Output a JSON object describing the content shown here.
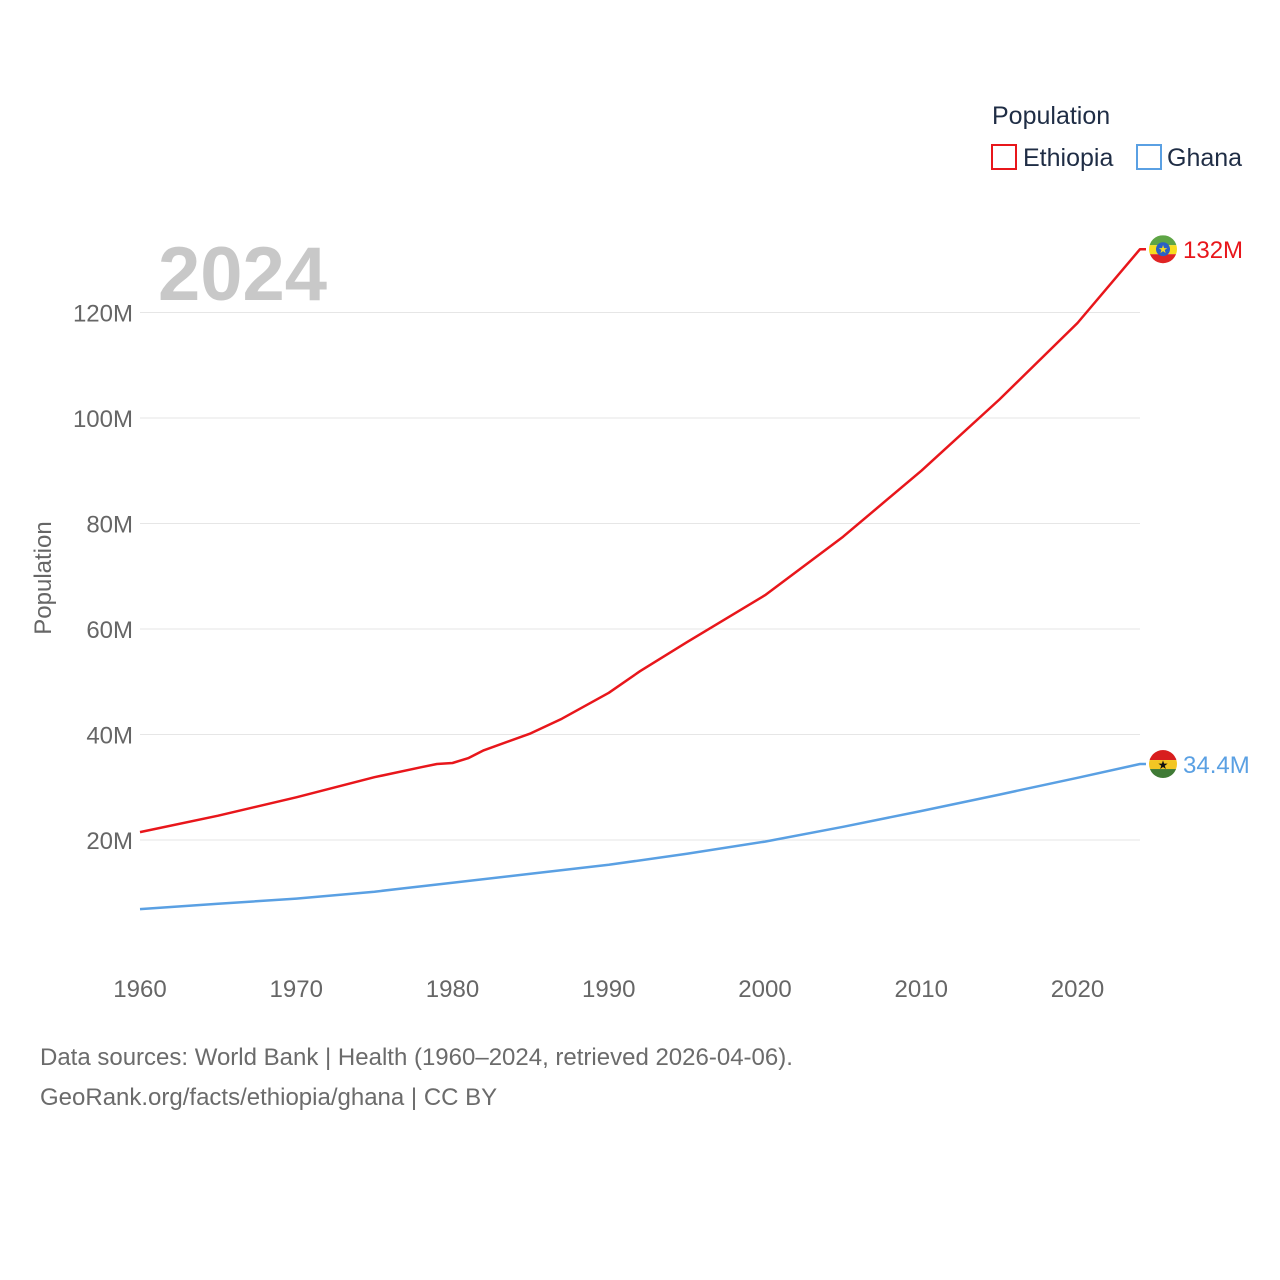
{
  "footer": {
    "sources": "Data sources: World Bank | Health (1960–2024, retrieved 2026-04-06).",
    "credit": "GeoRank.org/facts/ethiopia/ghana | CC BY"
  },
  "chart_data": {
    "type": "line",
    "title": "Population",
    "year_label": "2024",
    "xlabel": "",
    "ylabel": "Population",
    "xlim": [
      1960,
      2024
    ],
    "ylim": [
      0,
      130000000
    ],
    "x_ticks": [
      1960,
      1970,
      1980,
      1990,
      2000,
      2010,
      2020
    ],
    "y_ticks": [
      20000000,
      40000000,
      60000000,
      80000000,
      100000000,
      120000000
    ],
    "y_tick_labels": [
      "20M",
      "40M",
      "60M",
      "80M",
      "100M",
      "120M"
    ],
    "legend": {
      "title": "Population",
      "position": "top-right"
    },
    "series": [
      {
        "name": "Ethiopia",
        "color": "#e8161b",
        "end_label": "132M",
        "flag_icon": "ethiopia-flag-icon",
        "points": [
          [
            1960,
            21.5
          ],
          [
            1965,
            24.6
          ],
          [
            1970,
            28.1
          ],
          [
            1975,
            31.9
          ],
          [
            1978,
            33.8
          ],
          [
            1979,
            34.4
          ],
          [
            1980,
            34.6
          ],
          [
            1981,
            35.5
          ],
          [
            1982,
            37.0
          ],
          [
            1985,
            40.2
          ],
          [
            1987,
            43.0
          ],
          [
            1990,
            47.9
          ],
          [
            1992,
            52.0
          ],
          [
            1995,
            57.5
          ],
          [
            2000,
            66.4
          ],
          [
            2005,
            77.5
          ],
          [
            2010,
            90.0
          ],
          [
            2015,
            103.5
          ],
          [
            2020,
            118.0
          ],
          [
            2024,
            132.0
          ]
        ]
      },
      {
        "name": "Ghana",
        "color": "#5aa0e3",
        "end_label": "34.4M",
        "flag_icon": "ghana-flag-icon",
        "points": [
          [
            1960,
            6.9
          ],
          [
            1965,
            7.9
          ],
          [
            1970,
            8.9
          ],
          [
            1975,
            10.2
          ],
          [
            1980,
            11.9
          ],
          [
            1985,
            13.6
          ],
          [
            1990,
            15.3
          ],
          [
            1995,
            17.4
          ],
          [
            2000,
            19.7
          ],
          [
            2005,
            22.5
          ],
          [
            2010,
            25.5
          ],
          [
            2015,
            28.6
          ],
          [
            2020,
            31.8
          ],
          [
            2024,
            34.4
          ]
        ]
      }
    ]
  }
}
